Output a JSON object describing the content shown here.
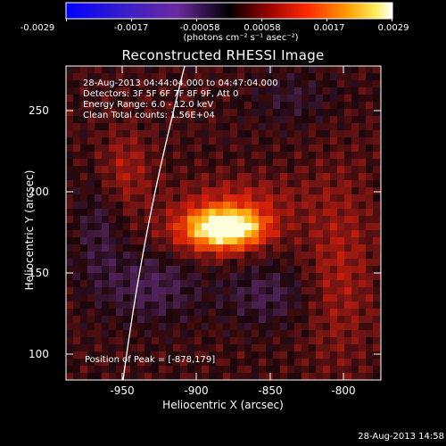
{
  "colorbar": {
    "ticks": [
      "-0.0029",
      "-0.0017",
      "-0.00058",
      "0.00058",
      "0.0017",
      "0.0029"
    ],
    "units": "(photons cm⁻² s⁻¹ asec⁻²)"
  },
  "title": "Reconstructed RHESSI Image",
  "info": {
    "time_range": "28-Aug-2013 04:44:04.000 to 04:47:04.000",
    "detectors": "Detectors: 3F 5F 6F 7F 8F 9F, Att 0",
    "energy": "Energy Range: 6.0 - 12.0 keV",
    "clean": "Clean     Total counts: 1.56E+04"
  },
  "axes": {
    "xlabel": "Heliocentric X (arcsec)",
    "ylabel": "Heliocentric Y (arcsec)",
    "xticks": [
      "-950",
      "-900",
      "-850",
      "-800"
    ],
    "yticks": [
      "250",
      "200",
      "150",
      "100"
    ]
  },
  "peak": "Position of Peak = [-878,179]",
  "footer": "28-Aug-2013 14:58"
}
